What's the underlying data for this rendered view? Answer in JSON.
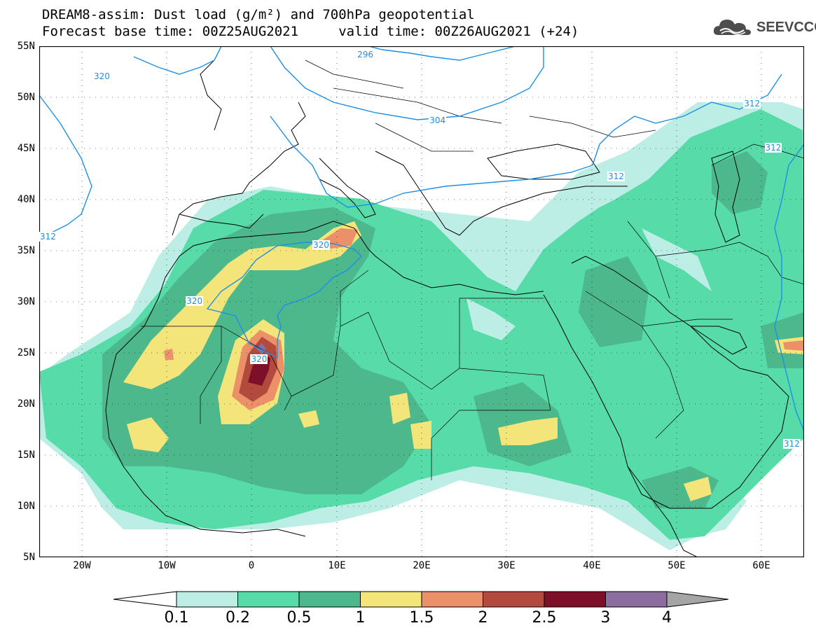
{
  "title": {
    "line1": "DREAM8-assim: Dust load (g/m²) and 700hPa geopotential",
    "line2": "Forecast base time: 00Z25AUG2021     valid time: 00Z26AUG2021 (+24)"
  },
  "logo": {
    "text": "SEEVCCC",
    "icon": "cloud-logo-icon"
  },
  "map": {
    "lon_range": [
      -25,
      65
    ],
    "lat_range": [
      5,
      55
    ],
    "lat_ticks": [
      "55N",
      "50N",
      "45N",
      "40N",
      "35N",
      "30N",
      "25N",
      "20N",
      "15N",
      "10N",
      "5N"
    ],
    "lon_ticks": [
      "20W",
      "10W",
      "0",
      "10E",
      "20E",
      "30E",
      "40E",
      "50E",
      "60E"
    ],
    "contour_color": "#1e8fe6",
    "contour_labels": [
      {
        "text": "320",
        "lon": -17.5,
        "lat": 52
      },
      {
        "text": "296",
        "lon": 13.5,
        "lat": 54.1
      },
      {
        "text": "304",
        "lon": 22,
        "lat": 47.7
      },
      {
        "text": "312",
        "lon": 59,
        "lat": 49.3
      },
      {
        "text": "312",
        "lon": 61.5,
        "lat": 45
      },
      {
        "text": "312",
        "lon": 43,
        "lat": 42.2
      },
      {
        "text": "312",
        "lon": -25,
        "lat": 36.3
      },
      {
        "text": "320",
        "lon": 8.3,
        "lat": 35.5
      },
      {
        "text": "320",
        "lon": -6.6,
        "lat": 30
      },
      {
        "text": "320",
        "lon": 1,
        "lat": 24.3
      },
      {
        "text": "312",
        "lon": 64,
        "lat": 16
      }
    ]
  },
  "colorbar": {
    "labels": [
      "0.1",
      "0.2",
      "0.5",
      "1",
      "1.5",
      "2",
      "2.5",
      "3",
      "4"
    ],
    "colors": [
      "#bdeee6",
      "#57dca9",
      "#4cb88c",
      "#f3e57a",
      "#ec906a",
      "#b24b3e",
      "#7d1028",
      "#8b6d9f"
    ],
    "under_color": "#ffffff",
    "over_color": "#a5a5a5"
  }
}
